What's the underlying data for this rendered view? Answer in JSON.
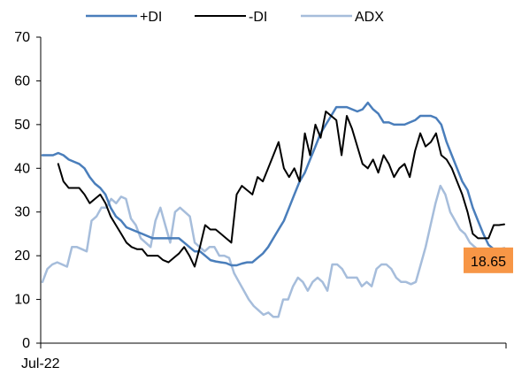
{
  "chart_data": {
    "type": "line",
    "title": "",
    "xlabel": "",
    "ylabel": "",
    "ylim": [
      0,
      70
    ],
    "yticks": [
      0,
      10,
      20,
      30,
      40,
      50,
      60,
      70
    ],
    "x_tick_labels": [
      "Jul-22"
    ],
    "grid": false,
    "legend_position": "top",
    "callout": {
      "label": "18.65",
      "value": 18.65,
      "color": "#f79646"
    },
    "series": [
      {
        "name": "+DI",
        "color": "#4a7ebb",
        "values": [
          43,
          43,
          43,
          43.5,
          43,
          42,
          41.5,
          41,
          40,
          38,
          36.5,
          35.5,
          34,
          31,
          29,
          28,
          26.5,
          26,
          25.5,
          25,
          24.5,
          24,
          24,
          24,
          24,
          24,
          24,
          23,
          22,
          21,
          21,
          20,
          19,
          18.7,
          18.5,
          18.3,
          17.8,
          17.8,
          18.2,
          18.5,
          18.5,
          19.5,
          20.5,
          22,
          24,
          26,
          28,
          31,
          34,
          37,
          39,
          42,
          45,
          48,
          50,
          52,
          54,
          54,
          54,
          53.5,
          53,
          53.5,
          55,
          53.5,
          52.5,
          50.5,
          50.5,
          50,
          50,
          50,
          50.5,
          51,
          52,
          52,
          52,
          51.5,
          50,
          46,
          43,
          40,
          37,
          35,
          31,
          28,
          25,
          22.5,
          21.5,
          21.5,
          21.7
        ]
      },
      {
        "name": "-DI",
        "color": "#000000",
        "values": [
          null,
          null,
          null,
          41,
          37,
          35.5,
          35.5,
          35.5,
          34,
          32,
          33,
          34,
          32,
          29,
          27,
          25,
          23,
          22,
          21.5,
          21.5,
          20,
          20,
          20,
          19,
          18.5,
          19.5,
          20.5,
          22,
          20,
          17.5,
          22,
          27,
          26,
          26,
          25,
          24,
          23,
          34,
          36,
          35,
          34,
          38,
          37,
          40,
          43,
          46,
          40,
          38,
          40,
          37,
          48,
          43,
          50,
          47,
          53,
          52,
          51,
          43,
          52,
          49,
          45,
          41,
          40,
          42,
          39,
          43,
          41,
          38,
          40,
          41,
          38,
          44,
          48,
          45,
          46,
          48,
          43,
          42,
          40,
          37,
          34,
          30,
          25,
          24,
          24,
          24,
          27,
          27,
          27.2
        ]
      },
      {
        "name": "ADX",
        "color": "#a6bddb",
        "values": [
          14,
          17,
          18,
          18.5,
          18,
          17.5,
          22,
          22,
          21.5,
          21,
          28,
          29,
          31,
          31,
          33,
          32,
          33.5,
          33,
          28.5,
          27,
          24,
          23,
          22,
          28,
          31,
          27,
          23,
          30,
          31,
          30,
          29,
          23,
          22,
          21,
          22,
          22,
          20,
          20,
          19.5,
          16,
          14,
          12,
          10,
          8.5,
          7.5,
          6.5,
          7,
          6,
          6,
          10,
          10,
          13,
          15,
          14,
          12,
          14,
          15,
          14,
          12,
          18,
          18,
          17,
          15,
          15,
          15,
          13,
          14,
          13,
          17,
          18,
          18,
          17,
          15,
          14,
          14,
          13.5,
          14,
          18,
          22,
          27,
          32,
          36,
          34,
          30,
          28,
          26,
          25,
          23,
          22,
          21,
          20,
          19.5,
          19,
          18.65,
          18.65
        ]
      }
    ]
  }
}
